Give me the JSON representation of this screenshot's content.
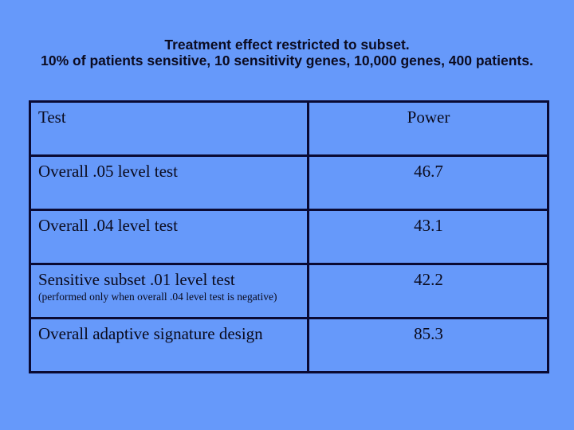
{
  "slide": {
    "background_color": "#6699FA",
    "table_border_color": "#0a0a33",
    "text_color": "#0a0a1c"
  },
  "title": {
    "line1": "Treatment effect restricted to subset.",
    "line2": "10% of patients sensitive, 10 sensitivity genes, 10,000 genes, 400 patients."
  },
  "chart_data": {
    "type": "table",
    "columns": [
      "Test",
      "Power"
    ],
    "rows": [
      {
        "test": "Overall .05 level test",
        "note": "",
        "power": "46.7"
      },
      {
        "test": "Overall .04 level test",
        "note": "",
        "power": "43.1"
      },
      {
        "test": "Sensitive subset .01 level test",
        "note": "(performed only when overall .04 level test is negative)",
        "power": "42.2"
      },
      {
        "test": "Overall adaptive signature design",
        "note": "",
        "power": "85.3"
      }
    ]
  }
}
